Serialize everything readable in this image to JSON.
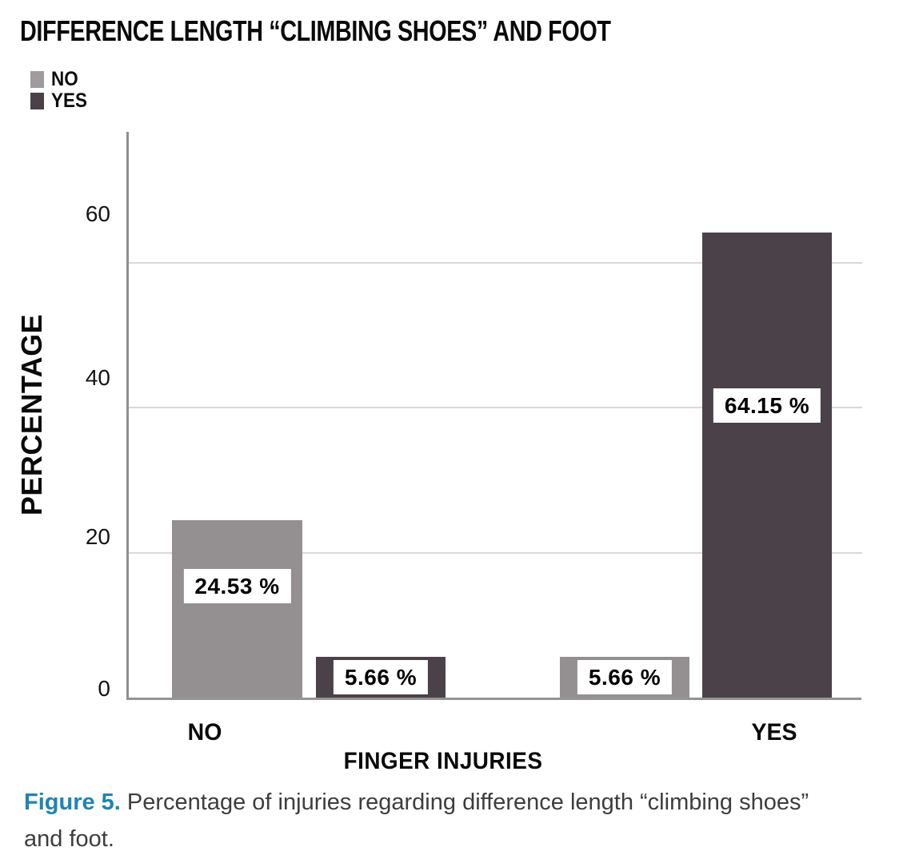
{
  "chart_data": {
    "type": "bar",
    "title": "DIFFERENCE LENGTH “CLIMBING SHOES” AND FOOT",
    "categories": [
      "NO",
      "YES"
    ],
    "series": [
      {
        "name": "NO",
        "color": "#949092",
        "values": [
          24.53,
          5.66
        ],
        "labels": [
          "24.53 %",
          "5.66 %"
        ]
      },
      {
        "name": "YES",
        "color": "#4a4248",
        "values": [
          5.66,
          64.15
        ],
        "labels": [
          "5.66 %",
          "64.15 %"
        ]
      }
    ],
    "xlabel": "FINGER INJURIES",
    "ylabel": "PERCENTAGE",
    "yticks": [
      "0",
      "20",
      "40",
      "60"
    ],
    "ylim": [
      0,
      78
    ],
    "grid": true,
    "legend_position": "top-left"
  },
  "legend": {
    "items": [
      {
        "label": "NO",
        "color": "#9e9a9d"
      },
      {
        "label": "YES",
        "color": "#4a4248"
      }
    ]
  },
  "caption": {
    "label": "Figure 5.",
    "label_color": "#1f83b5",
    "text": "Percentage of injuries regarding difference length “climbing shoes” and foot."
  }
}
